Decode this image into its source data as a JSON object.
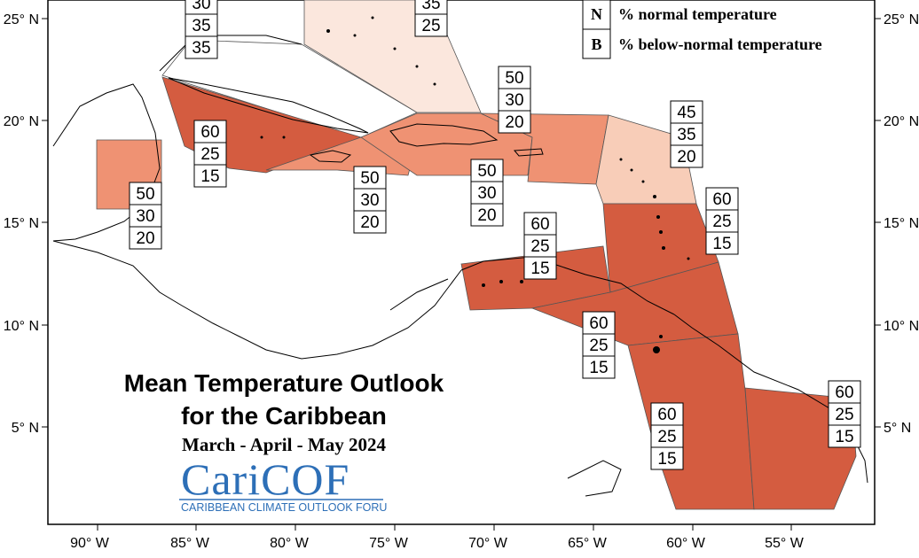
{
  "map": {
    "title_line1": "Mean Temperature Outlook",
    "title_line2": "for the Caribbean",
    "period": "March - April - May 2024",
    "logo": {
      "name": "CariCOF",
      "subtitle": "CARIBBEAN CLIMATE OUTLOOK FORUM"
    },
    "x_ticks": [
      "90° W",
      "85° W",
      "80° W",
      "75° W",
      "70° W",
      "65° W",
      "60° W",
      "55° W"
    ],
    "y_ticks": [
      "25° N",
      "20° N",
      "15° N",
      "10° N",
      "5° N"
    ],
    "legend": [
      {
        "key": "N",
        "label": "% normal temperature"
      },
      {
        "key": "B",
        "label": "% below-normal temperature"
      }
    ],
    "colors": {
      "a60": "#d45c40",
      "a50": "#ef9273",
      "a45": "#f8cdb8",
      "a35": "#fbe7dd"
    },
    "regions": [
      {
        "name": "bahamas-north",
        "values": [
          "30",
          "35",
          "35"
        ]
      },
      {
        "name": "bahamas-south",
        "values": [
          "35",
          "25"
        ]
      },
      {
        "name": "cuba",
        "values": [
          "60",
          "25",
          "15"
        ]
      },
      {
        "name": "belize",
        "values": [
          "50",
          "30",
          "20"
        ]
      },
      {
        "name": "jamaica",
        "values": [
          "50",
          "30",
          "20"
        ]
      },
      {
        "name": "hispaniola",
        "values": [
          "50",
          "30",
          "20"
        ]
      },
      {
        "name": "puerto-rico",
        "values": [
          "50",
          "30",
          "20"
        ]
      },
      {
        "name": "leeward-islands",
        "values": [
          "45",
          "35",
          "20"
        ]
      },
      {
        "name": "windward-islands",
        "values": [
          "60",
          "25",
          "15"
        ]
      },
      {
        "name": "abc-islands",
        "values": [
          "60",
          "25",
          "15"
        ]
      },
      {
        "name": "trinidad",
        "values": [
          "60",
          "25",
          "15"
        ]
      },
      {
        "name": "guyana",
        "values": [
          "60",
          "25",
          "15"
        ]
      },
      {
        "name": "french-guiana",
        "values": [
          "60",
          "25",
          "15"
        ]
      }
    ]
  }
}
